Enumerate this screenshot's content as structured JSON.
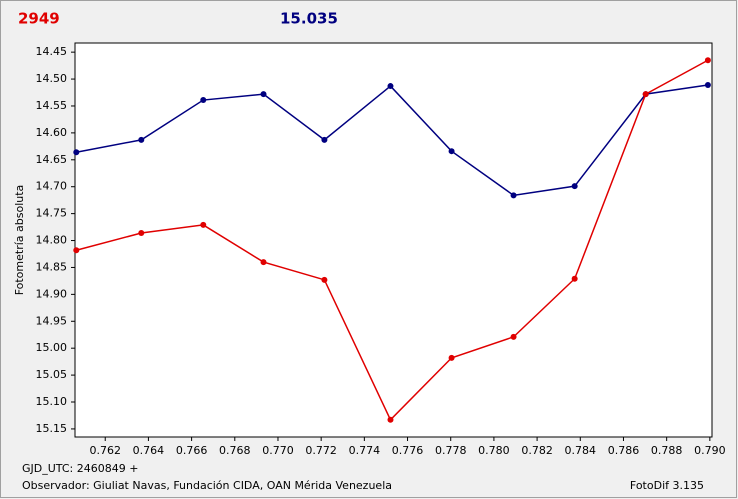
{
  "header": {
    "left": "2949",
    "center": "15.035"
  },
  "chart_data": {
    "type": "line",
    "ylabel": "Fotometría absoluta",
    "x": [
      0.76066,
      0.76367,
      0.76654,
      0.76933,
      0.77215,
      0.77521,
      0.77804,
      0.78091,
      0.78374,
      0.78703,
      0.78991
    ],
    "series": [
      {
        "color": "#000080",
        "values": [
          14.636,
          14.613,
          14.539,
          14.528,
          14.613,
          14.513,
          14.634,
          14.716,
          14.699,
          14.528,
          14.511
        ]
      },
      {
        "color": "#e00000",
        "values": [
          14.818,
          14.786,
          14.771,
          14.84,
          14.873,
          15.133,
          15.018,
          14.979,
          14.871,
          14.528,
          14.465
        ]
      }
    ],
    "xlim": [
      0.7606,
      0.7901
    ],
    "xticks": [
      0.762,
      0.764,
      0.766,
      0.768,
      {
        "value": 0.77,
        "label": "0.770"
      },
      0.772,
      0.774,
      0.776,
      0.778,
      {
        "value": 0.78,
        "label": "0.780"
      },
      0.782,
      0.784,
      0.786,
      0.788,
      {
        "value": 0.79,
        "label": "0.790"
      }
    ],
    "ylim": [
      14.433,
      15.165
    ],
    "y_inverted": true,
    "yticks": [
      14.45,
      {
        "value": 14.5,
        "label": "14.50"
      },
      14.55,
      {
        "value": 14.6,
        "label": "14.60"
      },
      14.65,
      {
        "value": 14.7,
        "label": "14.70"
      },
      14.75,
      {
        "value": 14.8,
        "label": "14.80"
      },
      14.85,
      {
        "value": 14.9,
        "label": "14.90"
      },
      14.95,
      {
        "value": 15.0,
        "label": "15.00"
      },
      15.05,
      {
        "value": 15.1,
        "label": "15.10"
      },
      15.15
    ]
  },
  "footer": {
    "gjd": "GJD_UTC: 2460849 +",
    "observer": "Observador: Giuliat Navas, Fundación CIDA, OAN Mérida Venezuela",
    "version": "FotoDif 3.135"
  }
}
